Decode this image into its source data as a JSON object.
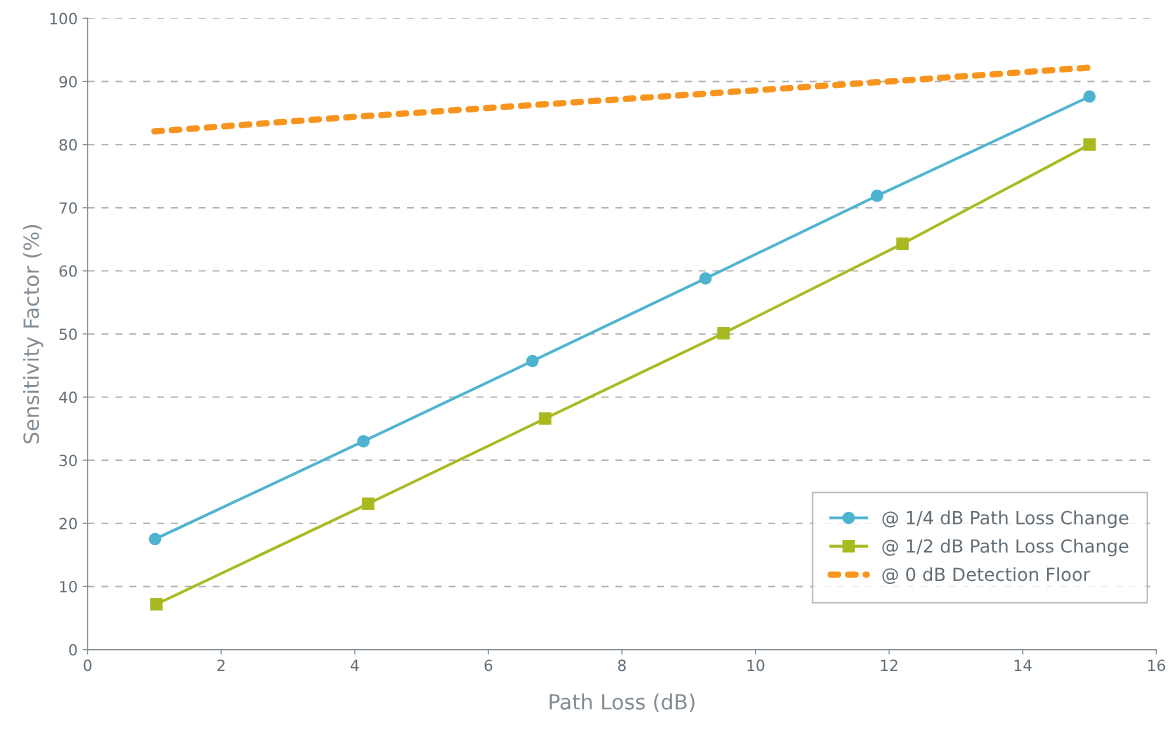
{
  "chart_data": {
    "type": "line",
    "xlabel": "Path Loss (dB)",
    "ylabel": "Sensitivity Factor (%)",
    "xlim": [
      0,
      16
    ],
    "xticks": [
      0,
      2,
      4,
      6,
      8,
      10,
      12,
      14,
      16
    ],
    "ylim": [
      0,
      100
    ],
    "yticks": [
      0,
      10,
      20,
      30,
      40,
      50,
      60,
      70,
      80,
      90,
      100
    ],
    "grid": "y",
    "legend": "bottom right",
    "series": [
      {
        "name": "@ 1/4 dB Path Loss Change",
        "color": "#4db3cf",
        "marker": "circle",
        "line_style": "solid",
        "x": [
          1.01,
          4.13,
          6.66,
          9.25,
          11.82,
          15
        ],
        "values": [
          17.5,
          33.0,
          45.7,
          58.8,
          71.9,
          87.6
        ]
      },
      {
        "name": "@ 1/2 dB Path Loss Change",
        "color": "#a9b920",
        "marker": "square",
        "line_style": "solid",
        "x": [
          1.03,
          4.2,
          6.85,
          9.52,
          12.2,
          15
        ],
        "values": [
          7.2,
          23.1,
          36.6,
          50.1,
          64.3,
          80.0
        ]
      },
      {
        "name": "@ 0 dB Detection Floor",
        "color": "#f7941d",
        "marker": "none",
        "line_style": "dotted",
        "x": [
          1,
          4,
          8,
          12,
          15
        ],
        "values": [
          82.1,
          84.4,
          87.2,
          90.0,
          92.2
        ]
      }
    ]
  }
}
